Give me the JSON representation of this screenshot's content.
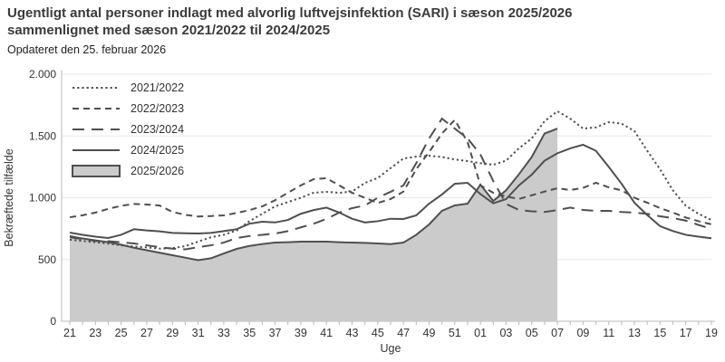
{
  "header": {
    "title_line1": "Ugentligt antal personer indlagt med alvorlig luftvejsinfektion (SARI) i sæson 2025/2026",
    "title_line2": "sammenlignet med sæson 2021/2022 til 2024/2025",
    "subtitle": "Opdateret den 25. februar 2026"
  },
  "chart_data": {
    "type": "line",
    "title": "Ugentligt antal personer indlagt med alvorlig luftvejsinfektion (SARI) i sæson 2025/2026 sammenlignet med sæson 2021/2022 til 2024/2025",
    "subtitle": "Opdateret den 25. februar 2026",
    "xlabel": "Uge",
    "ylabel": "Bekræftede tilfælde",
    "ylim": [
      0,
      2000
    ],
    "ytick_values": [
      0,
      500,
      1000,
      1500,
      2000
    ],
    "ytick_labels": [
      "0",
      "500",
      "1.000",
      "1.500",
      "2.000"
    ],
    "grid": true,
    "legend_position": "top-left",
    "label_every": 2,
    "categories": [
      "21",
      "22",
      "23",
      "24",
      "25",
      "26",
      "27",
      "28",
      "29",
      "30",
      "31",
      "32",
      "33",
      "34",
      "35",
      "36",
      "37",
      "38",
      "39",
      "40",
      "41",
      "42",
      "43",
      "44",
      "45",
      "46",
      "47",
      "48",
      "49",
      "50",
      "51",
      "52",
      "01",
      "02",
      "03",
      "04",
      "05",
      "06",
      "07",
      "08",
      "09",
      "10",
      "11",
      "12",
      "13",
      "14",
      "15",
      "16",
      "17",
      "18",
      "19"
    ],
    "series": [
      {
        "name": "2021/2022",
        "style": "dotted",
        "values": [
          660,
          650,
          640,
          628,
          615,
          605,
          598,
          588,
          592,
          608,
          645,
          680,
          700,
          735,
          810,
          870,
          930,
          965,
          1000,
          1040,
          1048,
          1040,
          1050,
          1120,
          1160,
          1240,
          1318,
          1333,
          1340,
          1330,
          1310,
          1297,
          1280,
          1267,
          1300,
          1400,
          1480,
          1620,
          1700,
          1640,
          1560,
          1570,
          1612,
          1600,
          1540,
          1380,
          1230,
          1060,
          935,
          870,
          820
        ]
      },
      {
        "name": "2022/2023",
        "style": "dash",
        "values": [
          842,
          858,
          880,
          910,
          935,
          950,
          945,
          937,
          885,
          862,
          848,
          852,
          857,
          877,
          900,
          930,
          980,
          1040,
          1100,
          1150,
          1158,
          1100,
          1040,
          1000,
          958,
          989,
          1050,
          1231,
          1370,
          1520,
          1630,
          1450,
          1100,
          1040,
          1010,
          990,
          1020,
          1050,
          1077,
          1062,
          1080,
          1121,
          1084,
          1060,
          1000,
          960,
          916,
          880,
          840,
          810,
          785
        ]
      },
      {
        "name": "2023/2024",
        "style": "longdash",
        "values": [
          680,
          665,
          650,
          648,
          640,
          630,
          615,
          600,
          588,
          582,
          600,
          615,
          637,
          674,
          690,
          700,
          710,
          730,
          760,
          790,
          828,
          880,
          916,
          937,
          1000,
          1048,
          1100,
          1280,
          1480,
          1640,
          1560,
          1480,
          1350,
          1136,
          950,
          901,
          890,
          885,
          900,
          920,
          901,
          894,
          894,
          885,
          879,
          870,
          850,
          835,
          815,
          780,
          748
        ]
      },
      {
        "name": "2024/2025",
        "style": "solid",
        "values": [
          718,
          700,
          685,
          674,
          700,
          745,
          735,
          728,
          715,
          712,
          711,
          715,
          730,
          745,
          790,
          806,
          800,
          820,
          870,
          900,
          920,
          880,
          830,
          800,
          810,
          830,
          828,
          857,
          952,
          1026,
          1113,
          1121,
          1030,
          955,
          989,
          1100,
          1187,
          1300,
          1360,
          1400,
          1429,
          1380,
          1250,
          1113,
          960,
          860,
          770,
          730,
          700,
          685,
          672
        ]
      },
      {
        "name": "2025/2026",
        "style": "area",
        "values": [
          690,
          670,
          655,
          640,
          620,
          595,
          575,
          555,
          535,
          515,
          495,
          510,
          549,
          586,
          610,
          625,
          637,
          640,
          645,
          645,
          645,
          640,
          637,
          635,
          630,
          625,
          637,
          700,
          784,
          894,
          938,
          952,
          1106,
          974,
          1060,
          1190,
          1330,
          1520,
          1560
        ]
      }
    ],
    "colors": {
      "line": "#4f4f4f",
      "area_fill": "#cbcbcb",
      "grid": "#e8e8e8",
      "axis": "#b8b8b8",
      "text": "#333333"
    }
  }
}
